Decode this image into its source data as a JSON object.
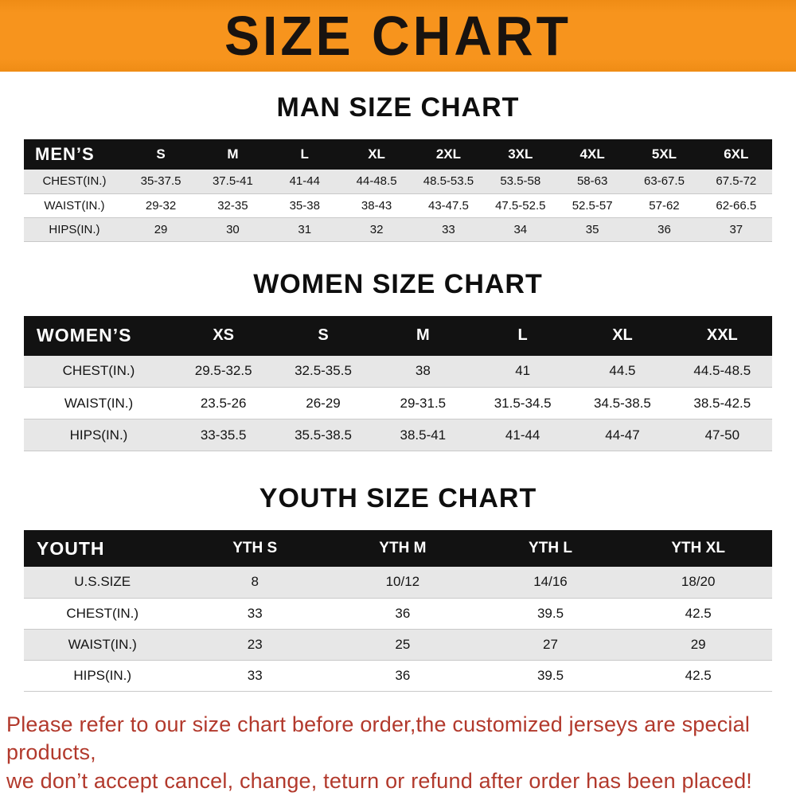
{
  "banner": {
    "title": "SIZE CHART"
  },
  "colors": {
    "banner_bg": "#f7941d",
    "header_bg": "#121212",
    "row_alt": "#e7e7e7",
    "footer_text": "#b2392c"
  },
  "tables": [
    {
      "heading": "MAN SIZE CHART",
      "header": [
        "MEN’S",
        "S",
        "M",
        "L",
        "XL",
        "2XL",
        "3XL",
        "4XL",
        "5XL",
        "6XL"
      ],
      "rows": [
        [
          "CHEST(IN.)",
          "35-37.5",
          "37.5-41",
          "41-44",
          "44-48.5",
          "48.5-53.5",
          "53.5-58",
          "58-63",
          "63-67.5",
          "67.5-72"
        ],
        [
          "WAIST(IN.)",
          "29-32",
          "32-35",
          "35-38",
          "38-43",
          "43-47.5",
          "47.5-52.5",
          "52.5-57",
          "57-62",
          "62-66.5"
        ],
        [
          "HIPS(IN.)",
          "29",
          "30",
          "31",
          "32",
          "33",
          "34",
          "35",
          "36",
          "37"
        ]
      ]
    },
    {
      "heading": "WOMEN SIZE CHART",
      "header": [
        "WOMEN’S",
        "XS",
        "S",
        "M",
        "L",
        "XL",
        "XXL"
      ],
      "rows": [
        [
          "CHEST(IN.)",
          "29.5-32.5",
          "32.5-35.5",
          "38",
          "41",
          "44.5",
          "44.5-48.5"
        ],
        [
          "WAIST(IN.)",
          "23.5-26",
          "26-29",
          "29-31.5",
          "31.5-34.5",
          "34.5-38.5",
          "38.5-42.5"
        ],
        [
          "HIPS(IN.)",
          "33-35.5",
          "35.5-38.5",
          "38.5-41",
          "41-44",
          "44-47",
          "47-50"
        ]
      ]
    },
    {
      "heading": "YOUTH SIZE CHART",
      "header": [
        "YOUTH",
        "YTH S",
        "YTH M",
        "YTH L",
        "YTH XL"
      ],
      "rows": [
        [
          "U.S.SIZE",
          "8",
          "10/12",
          "14/16",
          "18/20"
        ],
        [
          "CHEST(IN.)",
          "33",
          "36",
          "39.5",
          "42.5"
        ],
        [
          "WAIST(IN.)",
          "23",
          "25",
          "27",
          "29"
        ],
        [
          "HIPS(IN.)",
          "33",
          "36",
          "39.5",
          "42.5"
        ]
      ]
    }
  ],
  "footer": {
    "line1": "Please refer to our size chart before order,the customized jerseys are special products,",
    "line2": "we don’t accept cancel, change, teturn or refund after order has been placed!"
  }
}
